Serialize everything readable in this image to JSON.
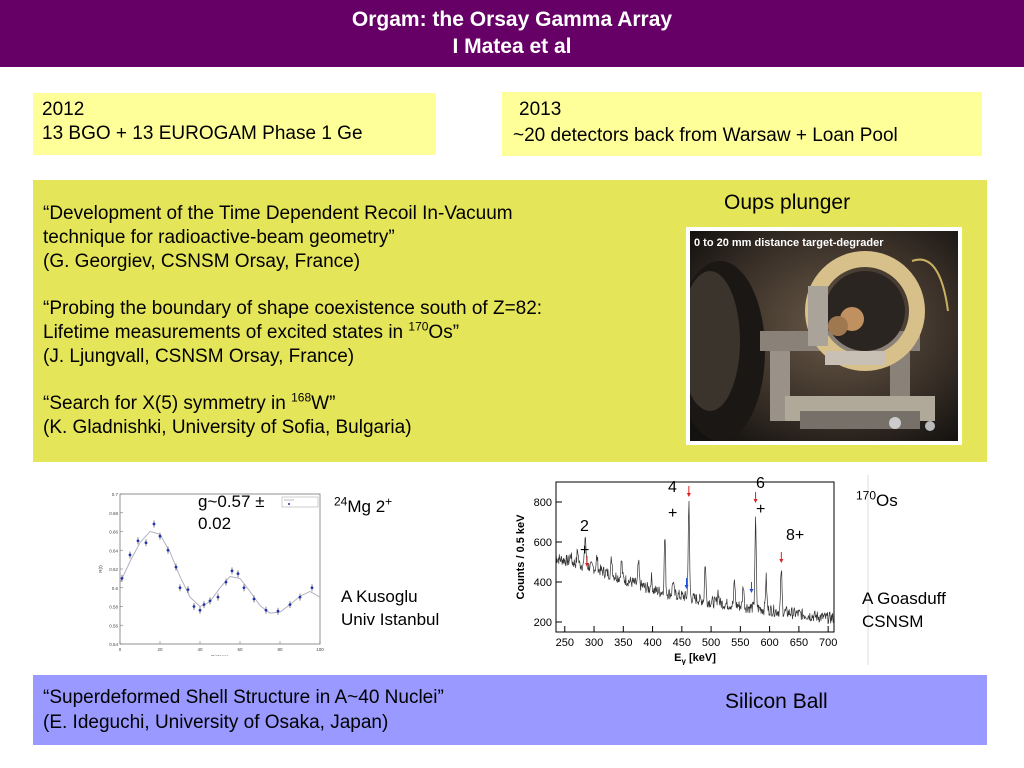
{
  "header": {
    "line1": "Orgam: the Orsay Gamma Array",
    "line2": "I Matea et al"
  },
  "box2012": {
    "year": "2012",
    "text": "13 BGO + 13 EUROGAM Phase 1 Ge"
  },
  "box2013": {
    "year": "2013",
    "text": "~20 detectors back from Warsaw + Loan Pool"
  },
  "pubs": {
    "p1": {
      "l1": "“Development of the Time Dependent Recoil In-Vacuum",
      "l2": "technique for radioactive-beam geometry”",
      "l3": "(G. Georgiev, CSNSM Orsay, France)"
    },
    "p2": {
      "l1": "“Probing the boundary of shape coexistence south of Z=82:",
      "l2a": "Lifetime measurements of excited states in ",
      "l2sup": "170",
      "l2b": "Os”",
      "l3": "(J. Ljungvall, CSNSM Orsay, France)"
    },
    "p3": {
      "l1a": "“Search for X(5) symmetry in ",
      "l1sup": "168",
      "l1b": "W”",
      "l2": "(K. Gladnishki, University of Sofia, Bulgaria)"
    }
  },
  "plunger": {
    "title": "Oups plunger",
    "caption": "0 to 20 mm distance target-degrader"
  },
  "mg": {
    "sup": "24",
    "label": "Mg 2",
    "sup2": "+",
    "g_line1": "g~0.57 ±",
    "g_line2": "0.02",
    "author1": "A Kusoglu",
    "author2": "Univ Istanbul"
  },
  "os": {
    "sup": "170",
    "label": "Os",
    "author1": "A Goasduff",
    "author2": "CSNSM"
  },
  "bottom": {
    "l1": "“Superdeformed Shell Structure in A~40 Nuclei”",
    "l2": "(E. Ideguchi, University of Osaka, Japan)",
    "silicon": "Silicon Ball"
  },
  "spectrum": {
    "ylabel": "Counts / 0.5 keV",
    "xlabel": "E",
    "xlabel_sub": "γ",
    "xlabel_unit": " [keV]",
    "labels": {
      "l2": "2",
      "l4": "4",
      "l6": "6",
      "l8": "8+",
      "plus": "+"
    }
  },
  "chart_data": [
    {
      "type": "scatter",
      "title": "",
      "xlabel": "Distance",
      "ylabel": "R(t)",
      "xlim": [
        0,
        100
      ],
      "ylim": [
        0.54,
        0.7
      ],
      "x_ticks": [
        "0",
        "20",
        "40",
        "60",
        "80",
        "100"
      ],
      "y_ticks": [
        "0.54",
        "0.56",
        "0.58",
        "0.6",
        "0.62",
        "0.64",
        "0.66",
        "0.68",
        "0.7"
      ],
      "points": [
        {
          "x": 1,
          "y": 0.61
        },
        {
          "x": 5,
          "y": 0.635
        },
        {
          "x": 9,
          "y": 0.65
        },
        {
          "x": 13,
          "y": 0.648
        },
        {
          "x": 17,
          "y": 0.668
        },
        {
          "x": 20,
          "y": 0.655
        },
        {
          "x": 24,
          "y": 0.64
        },
        {
          "x": 28,
          "y": 0.622
        },
        {
          "x": 30,
          "y": 0.6
        },
        {
          "x": 34,
          "y": 0.598
        },
        {
          "x": 37,
          "y": 0.58
        },
        {
          "x": 40,
          "y": 0.576
        },
        {
          "x": 42,
          "y": 0.582
        },
        {
          "x": 45,
          "y": 0.586
        },
        {
          "x": 49,
          "y": 0.59
        },
        {
          "x": 53,
          "y": 0.606
        },
        {
          "x": 56,
          "y": 0.618
        },
        {
          "x": 59,
          "y": 0.615
        },
        {
          "x": 62,
          "y": 0.6
        },
        {
          "x": 67,
          "y": 0.588
        },
        {
          "x": 73,
          "y": 0.576
        },
        {
          "x": 79,
          "y": 0.575
        },
        {
          "x": 85,
          "y": 0.582
        },
        {
          "x": 90,
          "y": 0.59
        },
        {
          "x": 96,
          "y": 0.6
        }
      ],
      "fit": [
        [
          0,
          0.605
        ],
        [
          5,
          0.628
        ],
        [
          10,
          0.648
        ],
        [
          15,
          0.66
        ],
        [
          20,
          0.657
        ],
        [
          25,
          0.638
        ],
        [
          30,
          0.612
        ],
        [
          35,
          0.59
        ],
        [
          40,
          0.58
        ],
        [
          45,
          0.585
        ],
        [
          50,
          0.6
        ],
        [
          55,
          0.612
        ],
        [
          60,
          0.61
        ],
        [
          65,
          0.596
        ],
        [
          70,
          0.581
        ],
        [
          75,
          0.573
        ],
        [
          80,
          0.574
        ],
        [
          85,
          0.582
        ],
        [
          90,
          0.591
        ],
        [
          95,
          0.596
        ],
        [
          100,
          0.59
        ]
      ]
    },
    {
      "type": "line",
      "title": "",
      "xlabel": "Eγ [keV]",
      "ylabel": "Counts / 0.5 keV",
      "xlim": [
        235,
        710
      ],
      "ylim": [
        150,
        900
      ],
      "x_ticks": [
        250,
        300,
        350,
        400,
        450,
        500,
        550,
        600,
        650,
        700
      ],
      "y_ticks": [
        200,
        400,
        600,
        800
      ],
      "baseline": [
        [
          235,
          520
        ],
        [
          300,
          470
        ],
        [
          400,
          360
        ],
        [
          500,
          300
        ],
        [
          600,
          260
        ],
        [
          700,
          220
        ]
      ],
      "peaks": [
        {
          "x": 260,
          "h": 40
        },
        {
          "x": 272,
          "h": 70
        },
        {
          "x": 285,
          "h": 150
        },
        {
          "x": 305,
          "h": 60
        },
        {
          "x": 330,
          "h": 80
        },
        {
          "x": 347,
          "h": 90
        },
        {
          "x": 376,
          "h": 110
        },
        {
          "x": 398,
          "h": 60
        },
        {
          "x": 421,
          "h": 280
        },
        {
          "x": 435,
          "h": 70
        },
        {
          "x": 462,
          "h": 470
        },
        {
          "x": 490,
          "h": 190
        },
        {
          "x": 512,
          "h": 60
        },
        {
          "x": 540,
          "h": 120
        },
        {
          "x": 555,
          "h": 110
        },
        {
          "x": 576,
          "h": 440
        },
        {
          "x": 594,
          "h": 160
        },
        {
          "x": 620,
          "h": 210
        }
      ]
    }
  ]
}
